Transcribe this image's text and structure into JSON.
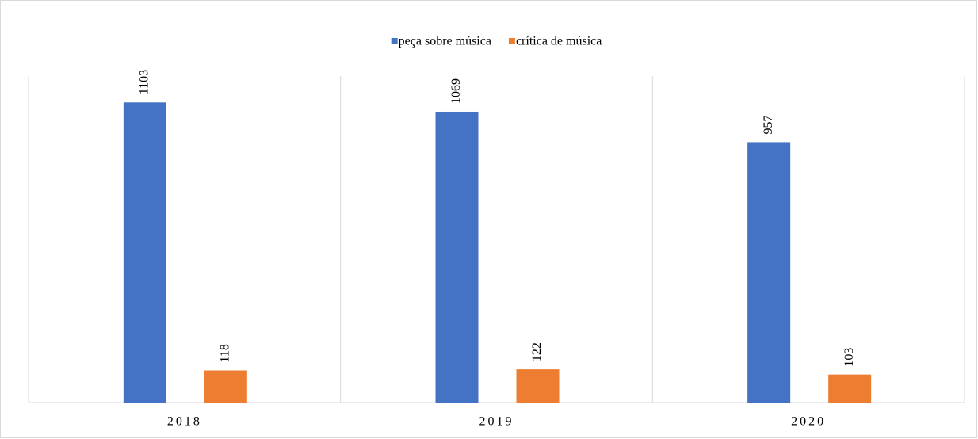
{
  "chart_data": {
    "type": "bar",
    "categories": [
      "2018",
      "2019",
      "2020"
    ],
    "series": [
      {
        "name": "peça sobre música",
        "color": "#4472c4",
        "values": [
          1103,
          1069,
          957
        ]
      },
      {
        "name": "crítica de música",
        "color": "#ed7d31",
        "values": [
          118,
          122,
          103
        ]
      }
    ],
    "ylim": [
      0,
      1200
    ],
    "legend": "top"
  }
}
